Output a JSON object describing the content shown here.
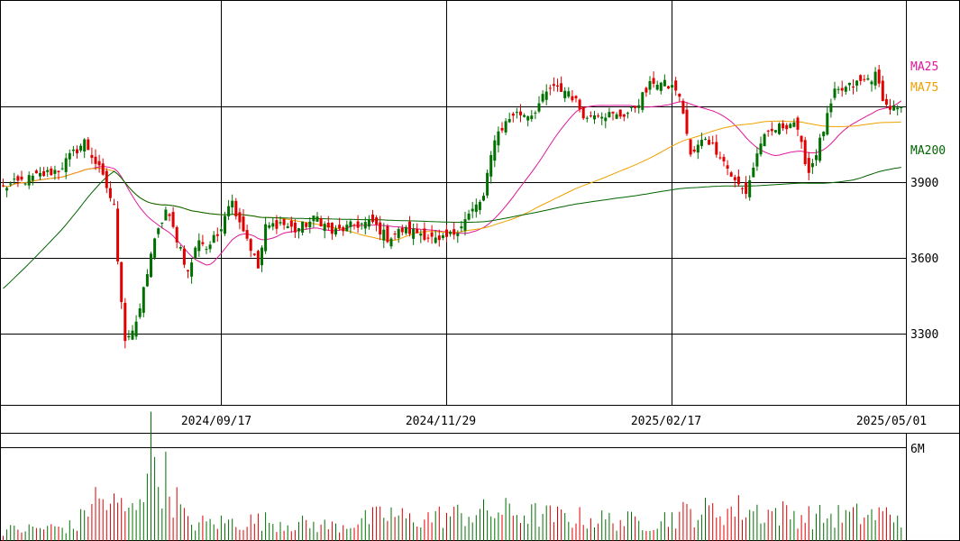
{
  "chart_data": {
    "type": "candlestick",
    "x_tick_labels": [
      "2024/09/17",
      "2024/11/29",
      "2025/02/17",
      "2025/05/01"
    ],
    "price_axis": {
      "ticks": [
        3300,
        3600,
        3900
      ],
      "ylim": [
        3020,
        4620
      ]
    },
    "volume_axis": {
      "ticks": [
        {
          "value": 6000000,
          "label": "6M"
        }
      ],
      "ylim": [
        0,
        6900000
      ]
    },
    "series_labels": {
      "ma25": {
        "name": "MA25",
        "color": "#e0189a"
      },
      "ma75": {
        "name": "MA75",
        "color": "#f0a000"
      },
      "ma200": {
        "name": "MA200",
        "color": "#006400"
      }
    },
    "colors": {
      "up": "#007000",
      "down": "#e00000",
      "grid": "#000000"
    },
    "candles": {
      "count": 244,
      "anchor_closes": [
        [
          0,
          3880
        ],
        [
          15,
          3950
        ],
        [
          18,
          4000
        ],
        [
          22,
          4060
        ],
        [
          26,
          3950
        ],
        [
          28,
          3880
        ],
        [
          30,
          3800
        ],
        [
          31,
          3600
        ],
        [
          33,
          3280
        ],
        [
          36,
          3330
        ],
        [
          40,
          3620
        ],
        [
          44,
          3790
        ],
        [
          48,
          3640
        ],
        [
          50,
          3540
        ],
        [
          53,
          3680
        ],
        [
          55,
          3640
        ],
        [
          58,
          3690
        ],
        [
          61,
          3820
        ],
        [
          62,
          3820
        ],
        [
          66,
          3680
        ],
        [
          69,
          3560
        ],
        [
          71,
          3720
        ],
        [
          75,
          3740
        ],
        [
          79,
          3710
        ],
        [
          85,
          3760
        ],
        [
          89,
          3700
        ],
        [
          95,
          3730
        ],
        [
          100,
          3740
        ],
        [
          104,
          3680
        ],
        [
          108,
          3710
        ],
        [
          113,
          3700
        ],
        [
          118,
          3660
        ],
        [
          122,
          3700
        ],
        [
          126,
          3770
        ],
        [
          130,
          3840
        ],
        [
          133,
          4080
        ],
        [
          138,
          4170
        ],
        [
          143,
          4170
        ],
        [
          148,
          4270
        ],
        [
          153,
          4260
        ],
        [
          158,
          4150
        ],
        [
          160,
          4180
        ],
        [
          166,
          4160
        ],
        [
          170,
          4180
        ],
        [
          176,
          4300
        ],
        [
          182,
          4270
        ],
        [
          184,
          4180
        ],
        [
          186,
          4000
        ],
        [
          190,
          4080
        ],
        [
          194,
          4010
        ],
        [
          198,
          3900
        ],
        [
          201,
          3860
        ],
        [
          205,
          4060
        ],
        [
          209,
          4110
        ],
        [
          214,
          4140
        ],
        [
          218,
          3940
        ],
        [
          221,
          4060
        ],
        [
          225,
          4250
        ],
        [
          231,
          4290
        ],
        [
          236,
          4320
        ],
        [
          239,
          4200
        ],
        [
          243,
          4180
        ]
      ],
      "volume_anchors": [
        [
          0,
          800000
        ],
        [
          20,
          1100000
        ],
        [
          24,
          3200000
        ],
        [
          35,
          2200000
        ],
        [
          40,
          6800000
        ],
        [
          50,
          1300000
        ],
        [
          70,
          1500000
        ],
        [
          90,
          1100000
        ],
        [
          105,
          2000000
        ],
        [
          110,
          1600000
        ],
        [
          120,
          1900000
        ],
        [
          135,
          2200000
        ],
        [
          150,
          1800000
        ],
        [
          175,
          1400000
        ],
        [
          185,
          2100000
        ],
        [
          200,
          2400000
        ],
        [
          220,
          1800000
        ],
        [
          240,
          2000000
        ]
      ]
    }
  }
}
